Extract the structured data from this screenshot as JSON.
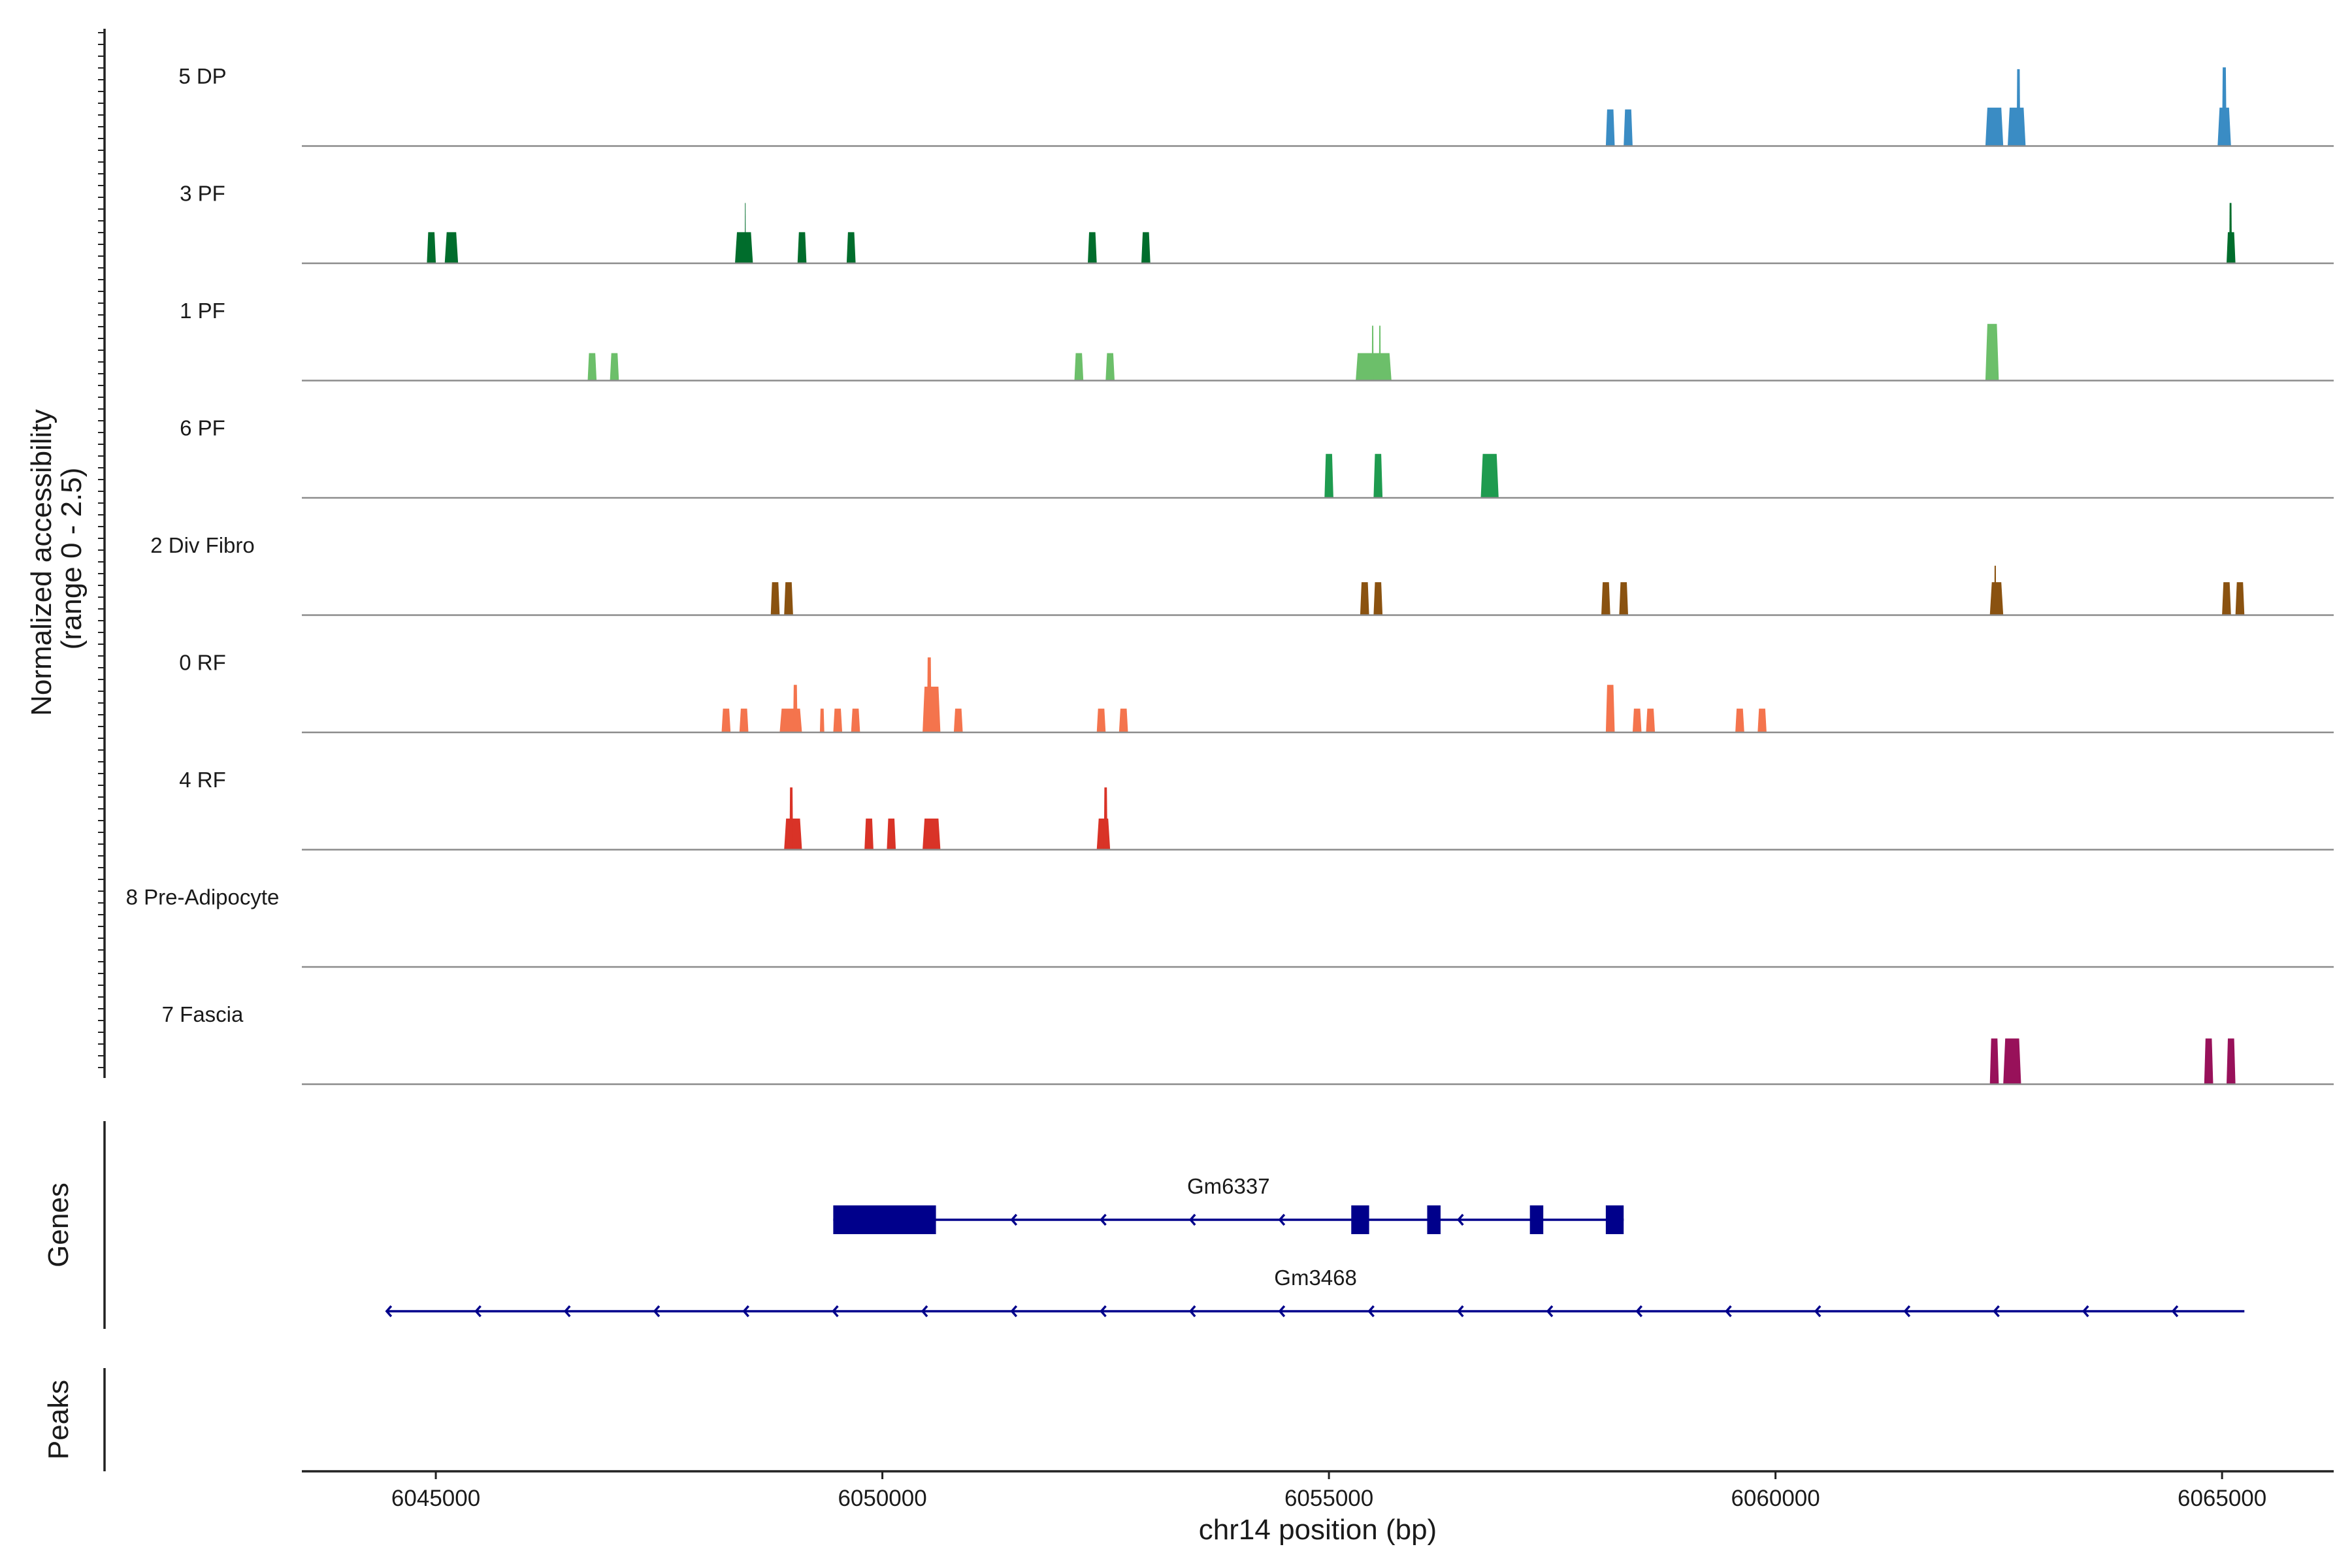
{
  "chart_data": {
    "type": "area",
    "genome": {
      "chromosome": "chr14",
      "xlim": [
        6043500,
        6066250
      ],
      "xticks": [
        6045000,
        6050000,
        6055000,
        6060000,
        6065000
      ],
      "xtick_labels": [
        "6045000",
        "6050000",
        "6055000",
        "6060000",
        "6065000"
      ],
      "xlabel": "chr14 position (bp)"
    },
    "coverage": {
      "ylabel_line1": "Normalized accessibility",
      "ylabel_line2": "(range 0 - 2.5)",
      "ylim": [
        0,
        2.5
      ],
      "tracks": [
        {
          "name": "5 DP",
          "color": "#3a8cc4",
          "peaks": [
            [
              6058100,
              6058200,
              1.0
            ],
            [
              6058300,
              6058400,
              1.0
            ],
            [
              6062350,
              6062550,
              1.05
            ],
            [
              6062600,
              6062800,
              1.05
            ],
            [
              6062700,
              6062740,
              2.1
            ],
            [
              6064950,
              6065100,
              1.05
            ],
            [
              6065000,
              6065050,
              2.15
            ]
          ]
        },
        {
          "name": "3 PF",
          "color": "#006d2c",
          "peaks": [
            [
              6044900,
              6045000,
              0.85
            ],
            [
              6045100,
              6045250,
              0.85
            ],
            [
              6048350,
              6048550,
              0.85
            ],
            [
              6048460,
              6048470,
              1.65
            ],
            [
              6049050,
              6049150,
              0.85
            ],
            [
              6049600,
              6049700,
              0.85
            ],
            [
              6052300,
              6052400,
              0.85
            ],
            [
              6052900,
              6053000,
              0.85
            ],
            [
              6065050,
              6065150,
              0.85
            ],
            [
              6065080,
              6065110,
              1.65
            ]
          ]
        },
        {
          "name": "1 PF",
          "color": "#6cbf6a",
          "peaks": [
            [
              6046700,
              6046800,
              0.75
            ],
            [
              6046950,
              6047050,
              0.75
            ],
            [
              6052150,
              6052250,
              0.75
            ],
            [
              6052500,
              6052600,
              0.75
            ],
            [
              6055300,
              6055700,
              0.75
            ],
            [
              6055480,
              6055500,
              1.5
            ],
            [
              6055560,
              6055580,
              1.5
            ],
            [
              6062350,
              6062500,
              1.55
            ]
          ]
        },
        {
          "name": "6 PF",
          "color": "#1e9b4f",
          "peaks": [
            [
              6054950,
              6055050,
              1.2
            ],
            [
              6055500,
              6055600,
              1.2
            ],
            [
              6056700,
              6056900,
              1.2
            ]
          ]
        },
        {
          "name": "2 Div Fibro",
          "color": "#8a5210",
          "peaks": [
            [
              6048750,
              6048850,
              0.9
            ],
            [
              6048900,
              6049000,
              0.9
            ],
            [
              6055350,
              6055450,
              0.9
            ],
            [
              6055500,
              6055600,
              0.9
            ],
            [
              6058050,
              6058150,
              0.9
            ],
            [
              6058250,
              6058350,
              0.9
            ],
            [
              6062400,
              6062550,
              0.9
            ],
            [
              6062450,
              6062470,
              1.35
            ],
            [
              6065000,
              6065100,
              0.9
            ],
            [
              6065150,
              6065250,
              0.9
            ]
          ]
        },
        {
          "name": "0 RF",
          "color": "#f4744d",
          "peaks": [
            [
              6048200,
              6048300,
              0.65
            ],
            [
              6048400,
              6048500,
              0.65
            ],
            [
              6048850,
              6049100,
              0.65
            ],
            [
              6049000,
              6049050,
              1.3
            ],
            [
              6049300,
              6049350,
              0.65
            ],
            [
              6049450,
              6049550,
              0.65
            ],
            [
              6049650,
              6049750,
              0.65
            ],
            [
              6050450,
              6050650,
              1.25
            ],
            [
              6050500,
              6050550,
              2.05
            ],
            [
              6050800,
              6050900,
              0.65
            ],
            [
              6052400,
              6052500,
              0.65
            ],
            [
              6052650,
              6052750,
              0.65
            ],
            [
              6058100,
              6058200,
              1.3
            ],
            [
              6058400,
              6058500,
              0.65
            ],
            [
              6058550,
              6058650,
              0.65
            ],
            [
              6059550,
              6059650,
              0.65
            ],
            [
              6059800,
              6059900,
              0.65
            ]
          ]
        },
        {
          "name": "4 RF",
          "color": "#d93327",
          "peaks": [
            [
              6048900,
              6049100,
              0.85
            ],
            [
              6048960,
              6049000,
              1.7
            ],
            [
              6049800,
              6049900,
              0.85
            ],
            [
              6050050,
              6050150,
              0.85
            ],
            [
              6050450,
              6050650,
              0.85
            ],
            [
              6052400,
              6052550,
              0.85
            ],
            [
              6052480,
              6052520,
              1.7
            ]
          ]
        },
        {
          "name": "8 Pre-Adipocyte",
          "color": "#888888",
          "peaks": []
        },
        {
          "name": "7 Fascia",
          "color": "#98115a",
          "peaks": [
            [
              6062400,
              6062500,
              1.25
            ],
            [
              6062550,
              6062750,
              1.25
            ],
            [
              6064800,
              6064900,
              1.25
            ],
            [
              6065050,
              6065150,
              1.25
            ]
          ]
        }
      ]
    },
    "genes": {
      "title": "Genes",
      "color": "#00008b",
      "items": [
        {
          "name": "Gm6337",
          "strand": "-",
          "start": 6049450,
          "end": 6058300,
          "exons": [
            [
              6049450,
              6050600
            ],
            [
              6055250,
              6055450
            ],
            [
              6056100,
              6056250
            ],
            [
              6057250,
              6057400
            ],
            [
              6058100,
              6058300
            ]
          ]
        },
        {
          "name": "Gm3468",
          "strand": "-",
          "start": 6044450,
          "end": 6065250,
          "exons": []
        }
      ]
    },
    "peaks_track": {
      "title": "Peaks",
      "items": []
    }
  }
}
